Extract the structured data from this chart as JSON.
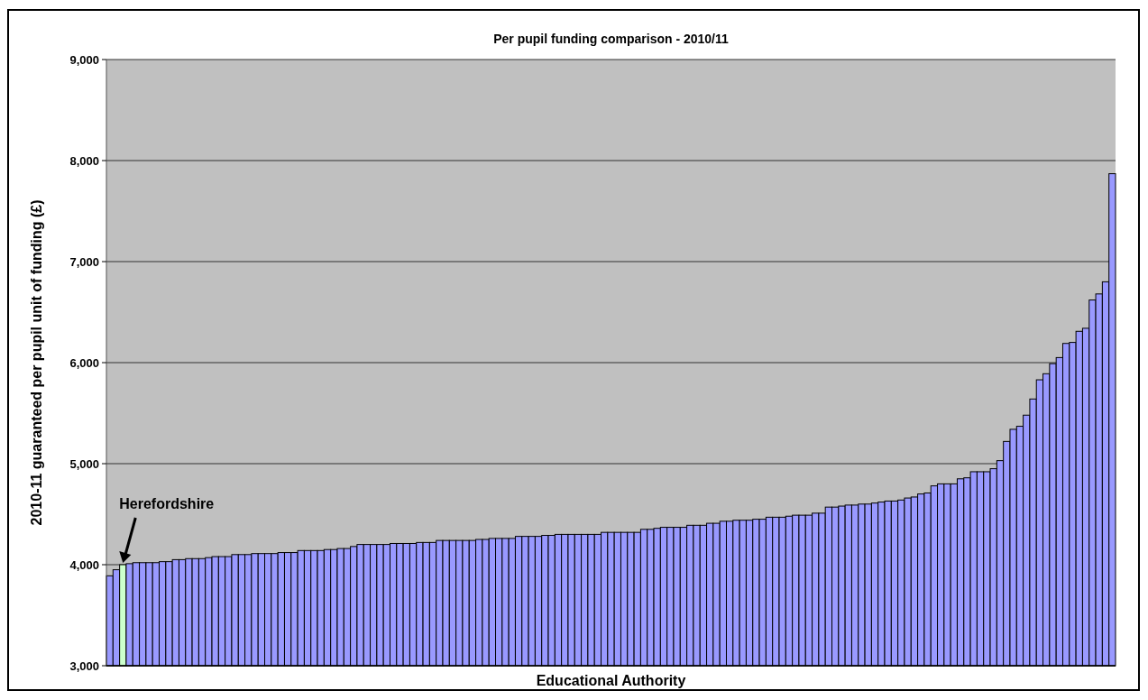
{
  "chart_data": {
    "type": "bar",
    "title": "Per pupil funding comparison - 2010/11",
    "xlabel": "Educational Authority",
    "ylabel": "2010-11 guaranteed per pupil unit  of funding (£)",
    "categories": [
      null,
      null,
      null,
      null,
      null,
      null,
      null,
      null,
      null,
      null,
      null,
      null,
      null,
      null,
      null,
      null,
      null,
      null,
      null,
      null,
      null,
      null,
      null,
      null,
      null,
      null,
      null,
      null,
      null,
      null,
      null,
      null,
      null,
      null,
      null,
      null,
      null,
      null,
      null,
      null,
      null,
      null,
      null,
      null,
      null,
      null,
      null,
      null,
      null,
      null,
      null,
      null,
      null,
      null,
      null,
      null,
      null,
      null,
      null,
      null,
      null,
      null,
      null,
      null,
      null,
      null,
      null,
      null,
      null,
      null,
      null,
      null,
      null,
      null,
      null,
      null,
      null,
      null,
      null,
      null,
      null,
      null,
      null,
      null,
      null,
      null,
      null,
      null,
      null,
      null,
      null,
      null,
      null,
      null,
      null,
      null,
      null,
      null,
      null,
      null,
      null,
      null,
      null,
      null,
      null,
      null,
      null,
      null,
      null,
      null,
      null,
      null,
      null,
      null,
      null,
      null,
      null,
      null,
      null,
      null,
      null,
      null,
      null,
      null,
      null,
      null,
      null,
      null,
      null,
      null,
      null,
      null,
      null,
      null,
      null,
      null,
      null,
      null,
      null,
      null,
      null,
      null,
      null,
      null,
      null,
      null,
      null,
      null,
      null,
      null,
      null,
      null,
      null
    ],
    "values": [
      3890,
      3950,
      4000,
      4010,
      4020,
      4020,
      4020,
      4020,
      4030,
      4030,
      4050,
      4050,
      4060,
      4060,
      4060,
      4070,
      4080,
      4080,
      4080,
      4100,
      4100,
      4100,
      4110,
      4110,
      4110,
      4110,
      4120,
      4120,
      4120,
      4140,
      4140,
      4140,
      4140,
      4150,
      4150,
      4160,
      4160,
      4180,
      4200,
      4200,
      4200,
      4200,
      4200,
      4210,
      4210,
      4210,
      4210,
      4220,
      4220,
      4220,
      4240,
      4240,
      4240,
      4240,
      4240,
      4240,
      4250,
      4250,
      4260,
      4260,
      4260,
      4260,
      4280,
      4280,
      4280,
      4280,
      4290,
      4290,
      4300,
      4300,
      4300,
      4300,
      4300,
      4300,
      4300,
      4320,
      4320,
      4320,
      4320,
      4320,
      4320,
      4350,
      4350,
      4360,
      4370,
      4370,
      4370,
      4370,
      4390,
      4390,
      4390,
      4410,
      4410,
      4430,
      4430,
      4440,
      4440,
      4440,
      4450,
      4450,
      4470,
      4470,
      4470,
      4480,
      4490,
      4490,
      4490,
      4510,
      4510,
      4570,
      4570,
      4580,
      4590,
      4590,
      4600,
      4600,
      4610,
      4620,
      4630,
      4630,
      4640,
      4660,
      4670,
      4700,
      4710,
      4780,
      4800,
      4800,
      4800,
      4850,
      4860,
      4920,
      4920,
      4920,
      4950,
      5030,
      5220,
      5340,
      5370,
      5480,
      5640,
      5830,
      5890,
      5990,
      6050,
      6190,
      6200,
      6310,
      6340,
      6620,
      6680,
      6800,
      7870
    ],
    "colors": [
      "#9999ff",
      "#9999ff",
      "#ccffcc",
      "#9999ff",
      "#9999ff",
      "#9999ff",
      "#9999ff",
      "#9999ff",
      "#9999ff",
      "#9999ff",
      "#9999ff",
      "#9999ff",
      "#9999ff",
      "#9999ff",
      "#9999ff",
      "#9999ff",
      "#9999ff",
      "#9999ff",
      "#9999ff",
      "#9999ff",
      "#9999ff",
      "#9999ff",
      "#9999ff",
      "#9999ff",
      "#9999ff",
      "#9999ff",
      "#9999ff",
      "#9999ff",
      "#9999ff",
      "#9999ff",
      "#9999ff",
      "#9999ff",
      "#9999ff",
      "#9999ff",
      "#9999ff",
      "#9999ff",
      "#9999ff",
      "#9999ff",
      "#9999ff",
      "#9999ff",
      "#9999ff",
      "#9999ff",
      "#9999ff",
      "#9999ff",
      "#9999ff",
      "#9999ff",
      "#9999ff",
      "#9999ff",
      "#9999ff",
      "#9999ff",
      "#9999ff",
      "#9999ff",
      "#9999ff",
      "#9999ff",
      "#9999ff",
      "#9999ff",
      "#9999ff",
      "#9999ff",
      "#9999ff",
      "#9999ff",
      "#9999ff",
      "#9999ff",
      "#9999ff",
      "#9999ff",
      "#9999ff",
      "#9999ff",
      "#9999ff",
      "#9999ff",
      "#9999ff",
      "#9999ff",
      "#9999ff",
      "#9999ff",
      "#9999ff",
      "#9999ff",
      "#9999ff",
      "#9999ff",
      "#9999ff",
      "#9999ff",
      "#9999ff",
      "#9999ff",
      "#9999ff",
      "#9999ff",
      "#9999ff",
      "#9999ff",
      "#9999ff",
      "#9999ff",
      "#9999ff",
      "#9999ff",
      "#9999ff",
      "#9999ff",
      "#9999ff",
      "#9999ff",
      "#9999ff",
      "#9999ff",
      "#9999ff",
      "#9999ff",
      "#9999ff",
      "#9999ff",
      "#9999ff",
      "#9999ff",
      "#9999ff",
      "#9999ff",
      "#9999ff",
      "#9999ff",
      "#9999ff",
      "#9999ff",
      "#9999ff",
      "#9999ff",
      "#9999ff",
      "#9999ff",
      "#9999ff",
      "#9999ff",
      "#9999ff",
      "#9999ff",
      "#9999ff",
      "#9999ff",
      "#9999ff",
      "#9999ff",
      "#9999ff",
      "#9999ff",
      "#9999ff",
      "#9999ff",
      "#9999ff",
      "#9999ff",
      "#9999ff",
      "#9999ff",
      "#9999ff",
      "#9999ff",
      "#9999ff",
      "#9999ff",
      "#9999ff",
      "#9999ff",
      "#9999ff",
      "#9999ff",
      "#9999ff",
      "#9999ff",
      "#9999ff",
      "#9999ff",
      "#9999ff",
      "#9999ff",
      "#9999ff",
      "#9999ff",
      "#9999ff",
      "#9999ff",
      "#9999ff",
      "#9999ff",
      "#9999ff",
      "#9999ff",
      "#9999ff",
      "#9999ff",
      "#9999ff",
      "#9999ff",
      "#9999ff"
    ],
    "ylim": [
      3000,
      9000
    ],
    "yticks": [
      {
        "value": 3000,
        "label": "3,000"
      },
      {
        "value": 4000,
        "label": "4,000"
      },
      {
        "value": 5000,
        "label": "5,000"
      },
      {
        "value": 6000,
        "label": "6,000"
      },
      {
        "value": 7000,
        "label": "7,000"
      },
      {
        "value": 8000,
        "label": "8,000"
      },
      {
        "value": 9000,
        "label": "9,000"
      }
    ],
    "grid": "y",
    "annotations": [
      "Herefordshire"
    ]
  }
}
